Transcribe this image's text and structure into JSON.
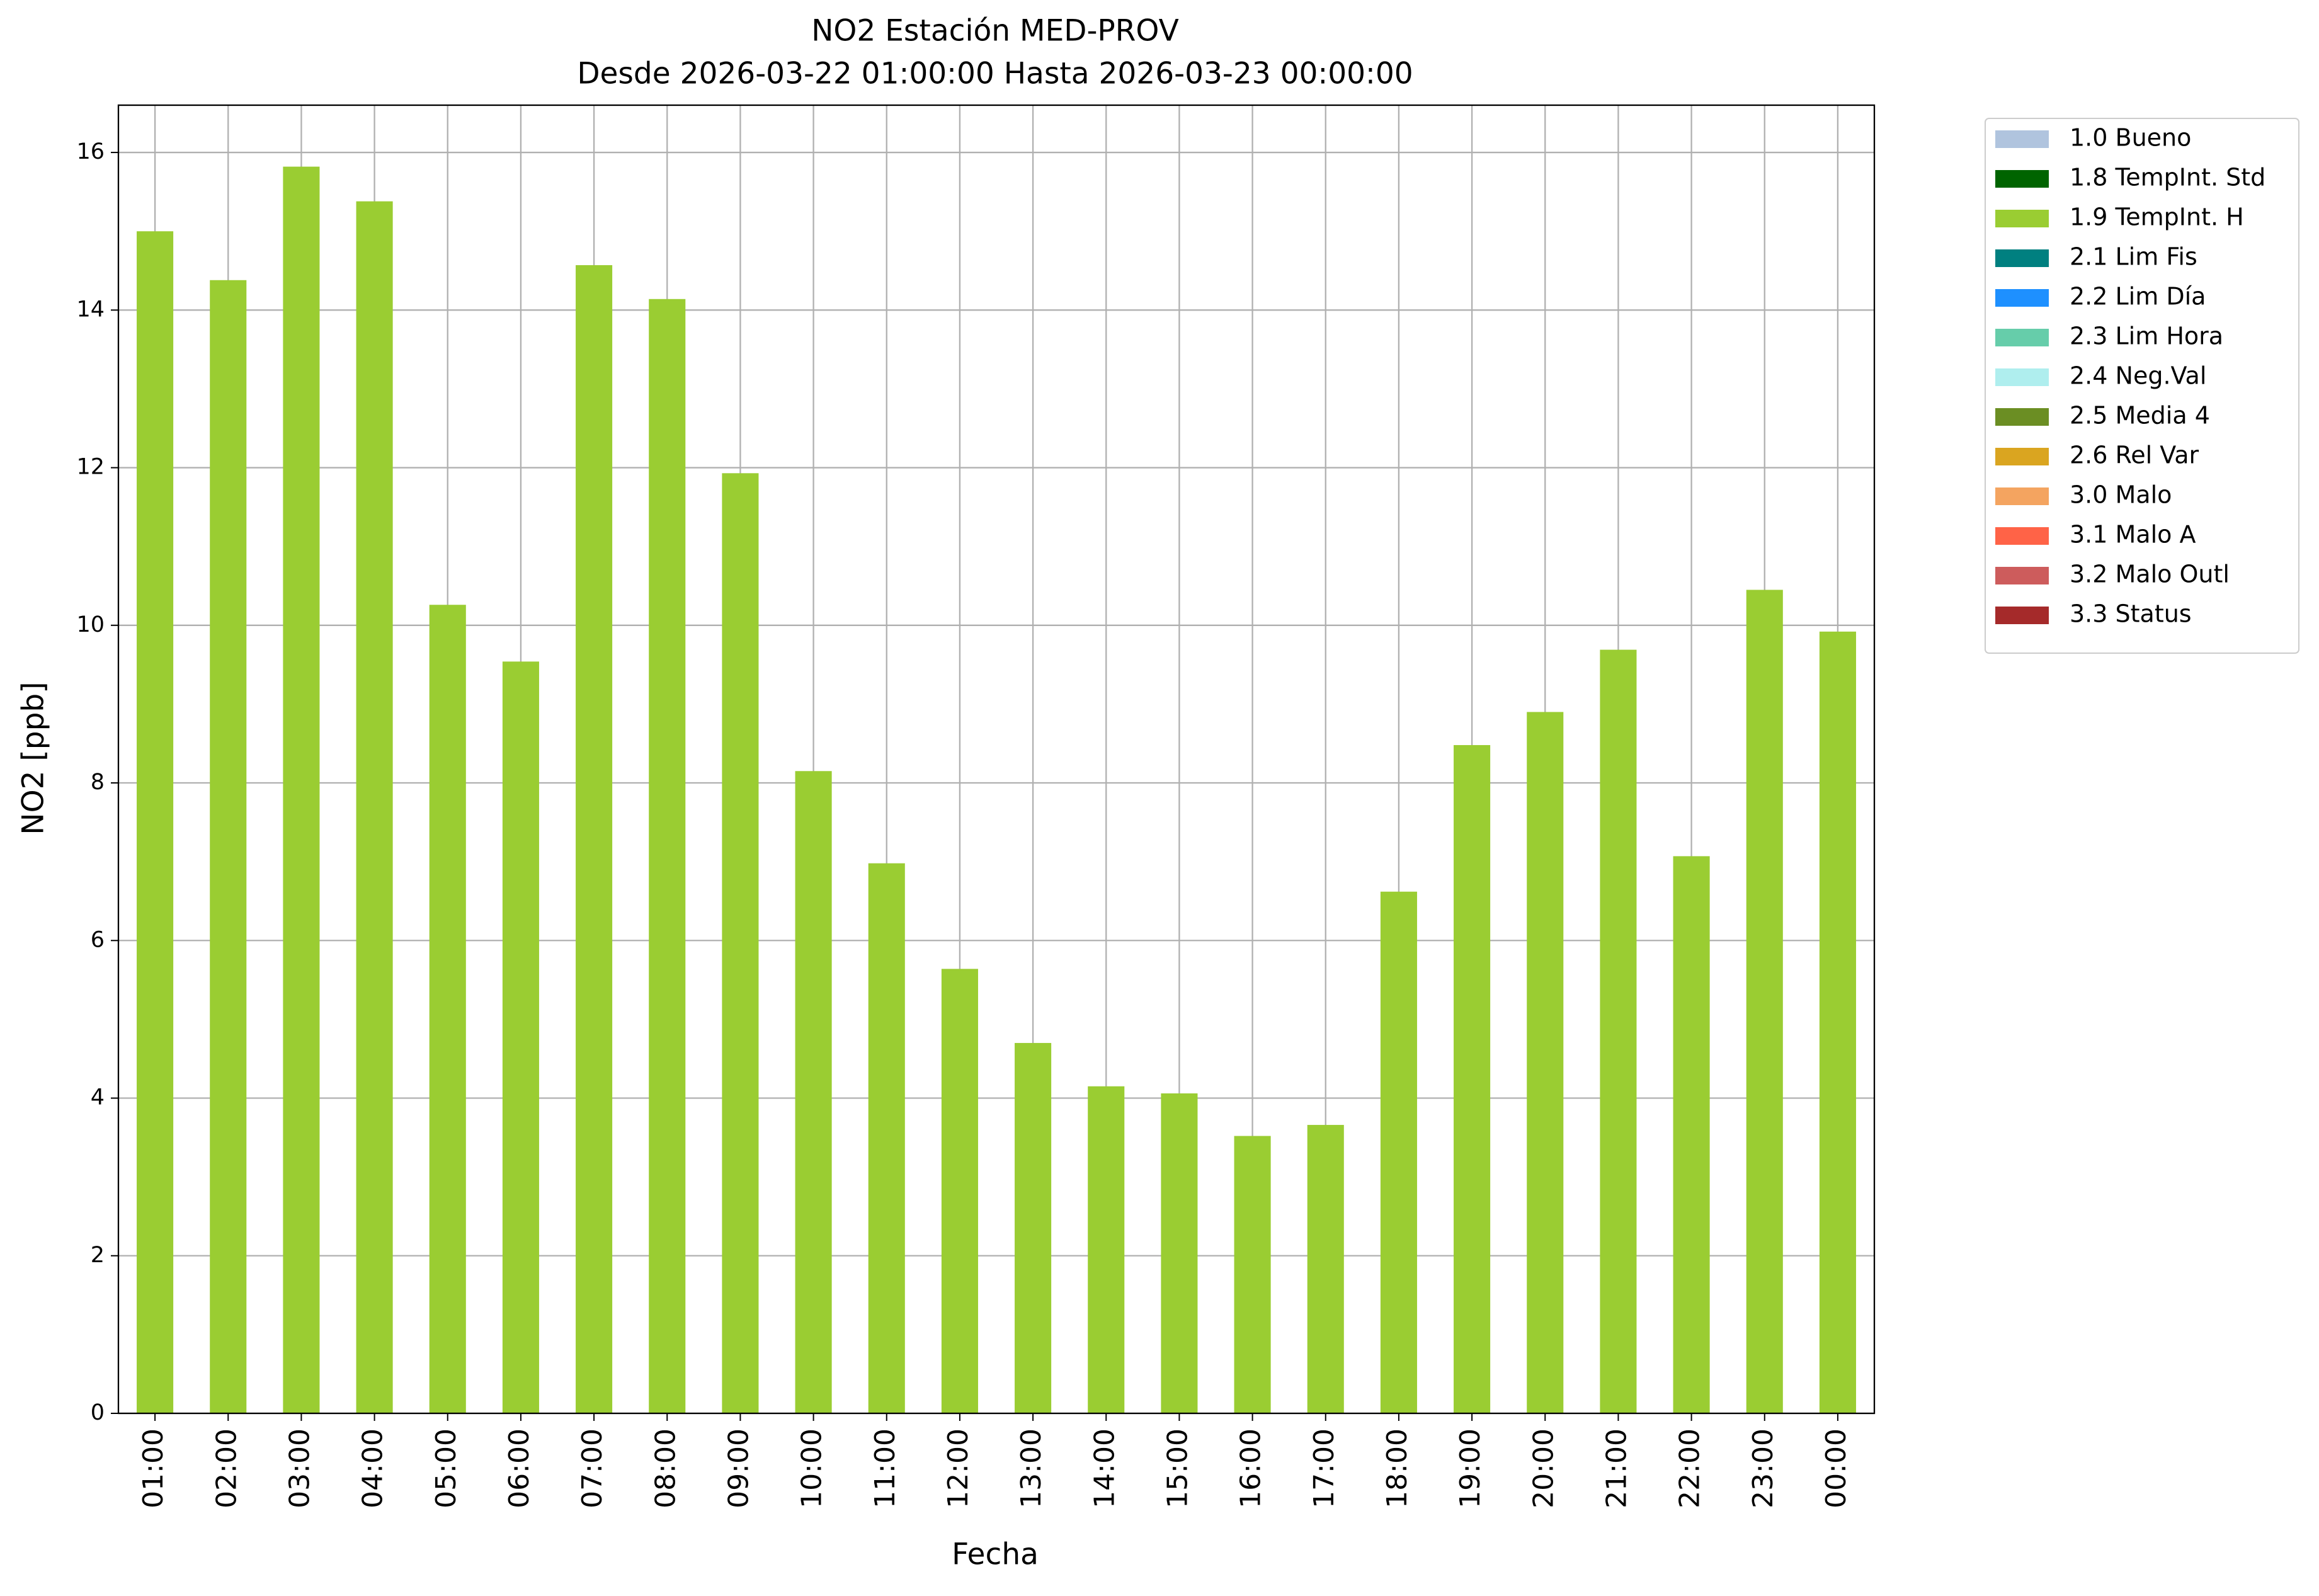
{
  "chart_data": {
    "type": "bar",
    "stacked": true,
    "title": "NO2 Estación MED-PROV",
    "subtitle": "Desde 2026-03-22 01:00:00 Hasta 2026-03-23 00:00:00",
    "x_label": "Fecha",
    "y_label": "NO2 [ppb]",
    "categories": [
      "01:00",
      "02:00",
      "03:00",
      "04:00",
      "05:00",
      "06:00",
      "07:00",
      "08:00",
      "09:00",
      "10:00",
      "11:00",
      "12:00",
      "13:00",
      "14:00",
      "15:00",
      "16:00",
      "17:00",
      "18:00",
      "19:00",
      "20:00",
      "21:00",
      "22:00",
      "23:00",
      "00:00"
    ],
    "series": [
      {
        "name": "1.0 Bueno",
        "color": "#b0c4de",
        "values": [
          null,
          null,
          null,
          null,
          null,
          null,
          null,
          null,
          null,
          null,
          null,
          null,
          null,
          null,
          null,
          null,
          null,
          null,
          null,
          null,
          null,
          null,
          null,
          null
        ]
      },
      {
        "name": "1.8 TempInt. Std",
        "color": "#006400",
        "values": [
          null,
          null,
          null,
          null,
          null,
          null,
          null,
          null,
          null,
          null,
          null,
          null,
          null,
          null,
          null,
          null,
          null,
          null,
          null,
          null,
          null,
          null,
          null,
          null
        ]
      },
      {
        "name": "1.9 TempInt. H",
        "color": "#9acd32",
        "values": [
          15.0,
          14.38,
          15.82,
          15.38,
          10.26,
          9.54,
          14.57,
          14.14,
          11.93,
          8.15,
          6.98,
          5.64,
          4.7,
          4.15,
          4.06,
          3.52,
          3.66,
          6.62,
          8.48,
          8.9,
          9.69,
          7.07,
          10.45,
          9.92
        ]
      },
      {
        "name": "2.1 Lim Fis",
        "color": "#008080",
        "values": [
          null,
          null,
          null,
          null,
          null,
          null,
          null,
          null,
          null,
          null,
          null,
          null,
          null,
          null,
          null,
          null,
          null,
          null,
          null,
          null,
          null,
          null,
          null,
          null
        ]
      },
      {
        "name": "2.2 Lim Día",
        "color": "#1e90ff",
        "values": [
          null,
          null,
          null,
          null,
          null,
          null,
          null,
          null,
          null,
          null,
          null,
          null,
          null,
          null,
          null,
          null,
          null,
          null,
          null,
          null,
          null,
          null,
          null,
          null
        ]
      },
      {
        "name": "2.3 Lim Hora",
        "color": "#66cdaa",
        "values": [
          null,
          null,
          null,
          null,
          null,
          null,
          null,
          null,
          null,
          null,
          null,
          null,
          null,
          null,
          null,
          null,
          null,
          null,
          null,
          null,
          null,
          null,
          null,
          null
        ]
      },
      {
        "name": "2.4 Neg.Val",
        "color": "#afeeee",
        "values": [
          null,
          null,
          null,
          null,
          null,
          null,
          null,
          null,
          null,
          null,
          null,
          null,
          null,
          null,
          null,
          null,
          null,
          null,
          null,
          null,
          null,
          null,
          null,
          null
        ]
      },
      {
        "name": "2.5 Media 4",
        "color": "#6b8e23",
        "values": [
          null,
          null,
          null,
          null,
          null,
          null,
          null,
          null,
          null,
          null,
          null,
          null,
          null,
          null,
          null,
          null,
          null,
          null,
          null,
          null,
          null,
          null,
          null,
          null
        ]
      },
      {
        "name": "2.6 Rel Var",
        "color": "#daa520",
        "values": [
          null,
          null,
          null,
          null,
          null,
          null,
          null,
          null,
          null,
          null,
          null,
          null,
          null,
          null,
          null,
          null,
          null,
          null,
          null,
          null,
          null,
          null,
          null,
          null
        ]
      },
      {
        "name": "3.0 Malo",
        "color": "#f4a460",
        "values": [
          null,
          null,
          null,
          null,
          null,
          null,
          null,
          null,
          null,
          null,
          null,
          null,
          null,
          null,
          null,
          null,
          null,
          null,
          null,
          null,
          null,
          null,
          null,
          null
        ]
      },
      {
        "name": "3.1 Malo A",
        "color": "#ff6347",
        "values": [
          null,
          null,
          null,
          null,
          null,
          null,
          null,
          null,
          null,
          null,
          null,
          null,
          null,
          null,
          null,
          null,
          null,
          null,
          null,
          null,
          null,
          null,
          null,
          null
        ]
      },
      {
        "name": "3.2 Malo Outl",
        "color": "#cd5c5c",
        "values": [
          null,
          null,
          null,
          null,
          null,
          null,
          null,
          null,
          null,
          null,
          null,
          null,
          null,
          null,
          null,
          null,
          null,
          null,
          null,
          null,
          null,
          null,
          null,
          null
        ]
      },
      {
        "name": "3.3 Status",
        "color": "#a52a2a",
        "values": [
          null,
          null,
          null,
          null,
          null,
          null,
          null,
          null,
          null,
          null,
          null,
          null,
          null,
          null,
          null,
          null,
          null,
          null,
          null,
          null,
          null,
          null,
          null,
          null
        ]
      }
    ],
    "ylim": [
      0,
      16.6
    ],
    "yticks": [
      0,
      2,
      4,
      6,
      8,
      10,
      12,
      14,
      16
    ],
    "grid": true,
    "legend": "outside-upper-right"
  }
}
